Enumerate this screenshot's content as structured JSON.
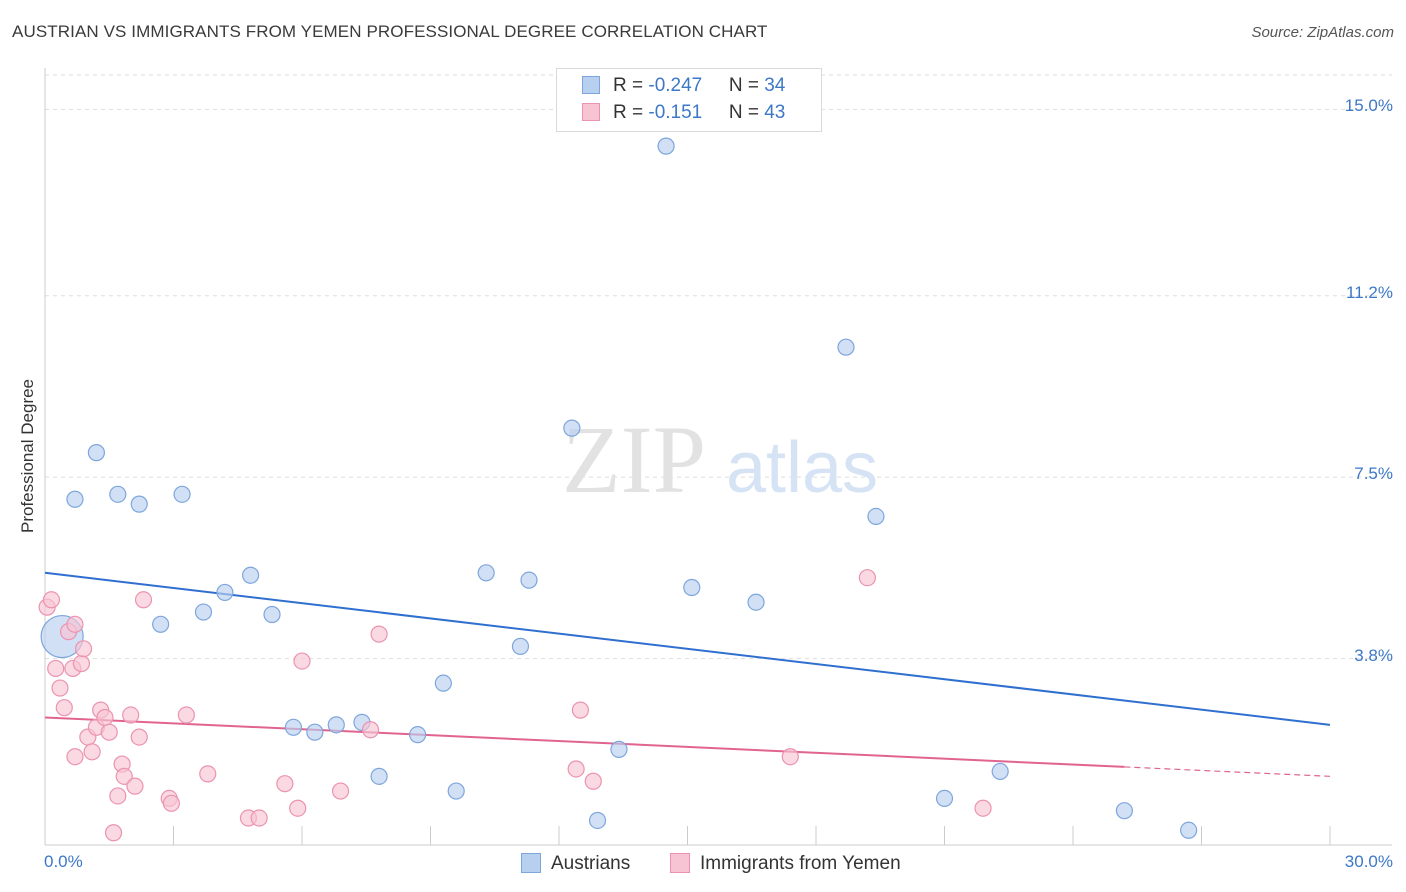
{
  "title": "AUSTRIAN VS IMMIGRANTS FROM YEMEN PROFESSIONAL DEGREE CORRELATION CHART",
  "source": "Source: ZipAtlas.com",
  "watermark": {
    "zip": "ZIP",
    "atlas": "atlas"
  },
  "legend_top": {
    "rows": [
      {
        "r_label": "R = ",
        "r_value": "-0.247",
        "n_label": "N = ",
        "n_value": "34"
      },
      {
        "r_label": "R = ",
        "r_value": "-0.151",
        "n_label": "N = ",
        "n_value": "43"
      }
    ]
  },
  "legend_bottom": [
    "Austrians",
    "Immigrants from Yemen"
  ],
  "colors": {
    "blue_fill": "#b8d0f0",
    "blue_stroke": "#7ea6dc",
    "blue_line": "#2f6fcf",
    "pink_fill": "#f7c4d4",
    "pink_stroke": "#eb93b0",
    "pink_line": "#e0648f",
    "tick_label": "#3d78c7",
    "grid": "#dddddd"
  },
  "chart_data": {
    "type": "scatter",
    "xlabel": "",
    "ylabel": "Professional Degree",
    "xlim": [
      0,
      30
    ],
    "ylim": [
      0,
      15.7
    ],
    "x_tick_labels": [
      "0.0%",
      "30.0%"
    ],
    "y_ticks": [
      3.8,
      7.5,
      11.2,
      15.0
    ],
    "y_tick_labels": [
      "3.8%",
      "7.5%",
      "11.2%",
      "15.0%"
    ],
    "grid": true,
    "legend_position": "top-center",
    "series": [
      {
        "name": "Austrians",
        "color": "#b8d0f0",
        "points": [
          {
            "x": 0.4,
            "y": 4.25,
            "big": true
          },
          {
            "x": 1.2,
            "y": 8.0
          },
          {
            "x": 0.7,
            "y": 7.05
          },
          {
            "x": 1.7,
            "y": 7.15
          },
          {
            "x": 2.2,
            "y": 6.95
          },
          {
            "x": 3.2,
            "y": 7.15
          },
          {
            "x": 2.7,
            "y": 4.5
          },
          {
            "x": 3.7,
            "y": 4.75
          },
          {
            "x": 4.2,
            "y": 5.15
          },
          {
            "x": 4.8,
            "y": 5.5
          },
          {
            "x": 5.3,
            "y": 4.7
          },
          {
            "x": 5.8,
            "y": 2.4
          },
          {
            "x": 6.3,
            "y": 2.3
          },
          {
            "x": 6.8,
            "y": 2.45
          },
          {
            "x": 7.4,
            "y": 2.5
          },
          {
            "x": 7.8,
            "y": 1.4
          },
          {
            "x": 8.7,
            "y": 2.25
          },
          {
            "x": 9.3,
            "y": 3.3
          },
          {
            "x": 9.6,
            "y": 1.1
          },
          {
            "x": 10.3,
            "y": 5.55
          },
          {
            "x": 11.3,
            "y": 5.4
          },
          {
            "x": 11.1,
            "y": 4.05
          },
          {
            "x": 12.3,
            "y": 8.5
          },
          {
            "x": 12.9,
            "y": 0.5
          },
          {
            "x": 13.4,
            "y": 1.95
          },
          {
            "x": 14.5,
            "y": 14.25
          },
          {
            "x": 15.1,
            "y": 5.25
          },
          {
            "x": 16.6,
            "y": 4.95
          },
          {
            "x": 18.7,
            "y": 10.15
          },
          {
            "x": 19.4,
            "y": 6.7
          },
          {
            "x": 21.0,
            "y": 0.95
          },
          {
            "x": 22.3,
            "y": 1.5
          },
          {
            "x": 25.2,
            "y": 0.7
          },
          {
            "x": 26.7,
            "y": 0.3
          }
        ]
      },
      {
        "name": "Immigrants from Yemen",
        "color": "#f7c4d4",
        "points": [
          {
            "x": 0.05,
            "y": 4.85
          },
          {
            "x": 0.15,
            "y": 5.0
          },
          {
            "x": 0.25,
            "y": 3.6
          },
          {
            "x": 0.35,
            "y": 3.2
          },
          {
            "x": 0.45,
            "y": 2.8
          },
          {
            "x": 0.55,
            "y": 4.35
          },
          {
            "x": 0.65,
            "y": 3.6
          },
          {
            "x": 0.7,
            "y": 1.8
          },
          {
            "x": 0.7,
            "y": 4.5
          },
          {
            "x": 0.85,
            "y": 3.7
          },
          {
            "x": 0.9,
            "y": 4.0
          },
          {
            "x": 1.0,
            "y": 2.2
          },
          {
            "x": 1.1,
            "y": 1.9
          },
          {
            "x": 1.2,
            "y": 2.4
          },
          {
            "x": 1.3,
            "y": 2.75
          },
          {
            "x": 1.4,
            "y": 2.6
          },
          {
            "x": 1.5,
            "y": 2.3
          },
          {
            "x": 1.6,
            "y": 0.25
          },
          {
            "x": 1.7,
            "y": 1.0
          },
          {
            "x": 1.8,
            "y": 1.65
          },
          {
            "x": 1.85,
            "y": 1.4
          },
          {
            "x": 2.0,
            "y": 2.65
          },
          {
            "x": 2.1,
            "y": 1.2
          },
          {
            "x": 2.2,
            "y": 2.2
          },
          {
            "x": 2.3,
            "y": 5.0
          },
          {
            "x": 2.9,
            "y": 0.95
          },
          {
            "x": 2.95,
            "y": 0.85
          },
          {
            "x": 3.3,
            "y": 2.65
          },
          {
            "x": 3.8,
            "y": 1.45
          },
          {
            "x": 4.75,
            "y": 0.55
          },
          {
            "x": 5.0,
            "y": 0.55
          },
          {
            "x": 5.6,
            "y": 1.25
          },
          {
            "x": 5.9,
            "y": 0.75
          },
          {
            "x": 6.0,
            "y": 3.75
          },
          {
            "x": 6.9,
            "y": 1.1
          },
          {
            "x": 7.6,
            "y": 2.35
          },
          {
            "x": 7.8,
            "y": 4.3
          },
          {
            "x": 12.4,
            "y": 1.55
          },
          {
            "x": 12.5,
            "y": 2.75
          },
          {
            "x": 12.8,
            "y": 1.3
          },
          {
            "x": 17.4,
            "y": 1.8
          },
          {
            "x": 19.2,
            "y": 5.45
          },
          {
            "x": 21.9,
            "y": 0.75
          }
        ]
      }
    ],
    "trendlines": [
      {
        "series": "Austrians",
        "x": [
          0,
          30
        ],
        "y": [
          5.55,
          2.45
        ],
        "dashed_from": null
      },
      {
        "series": "Immigrants from Yemen",
        "x": [
          0,
          30
        ],
        "y": [
          2.6,
          1.4
        ],
        "dashed_from": 25.2
      }
    ]
  }
}
